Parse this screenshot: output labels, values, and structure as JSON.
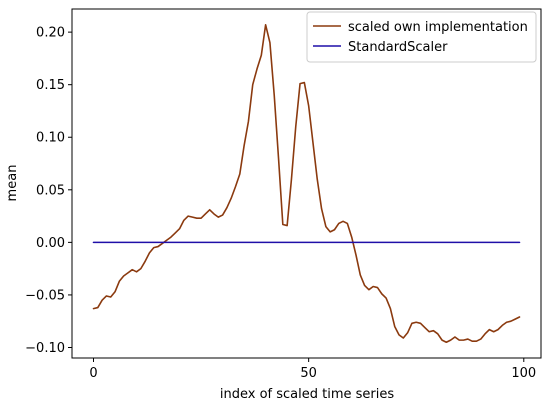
{
  "chart_data": {
    "type": "line",
    "title": "",
    "xlabel": "index of scaled time series",
    "ylabel": "mean",
    "xlim": [
      -5,
      104
    ],
    "ylim": [
      -0.11,
      0.222
    ],
    "xticks": [
      0,
      50,
      100
    ],
    "xtick_labels": [
      "0",
      "50",
      "100"
    ],
    "yticks": [
      -0.1,
      -0.05,
      0.0,
      0.05,
      0.1,
      0.15,
      0.2
    ],
    "ytick_labels": [
      "−0.10",
      "−0.05",
      "0.00",
      "0.05",
      "0.10",
      "0.15",
      "0.20"
    ],
    "grid": false,
    "legend_position": "top-right",
    "series": [
      {
        "name": "scaled own implementation",
        "color": "#8b3a0f",
        "x": [
          0,
          1,
          2,
          3,
          4,
          5,
          6,
          7,
          8,
          9,
          10,
          11,
          12,
          13,
          14,
          15,
          16,
          17,
          18,
          19,
          20,
          21,
          22,
          23,
          24,
          25,
          26,
          27,
          28,
          29,
          30,
          31,
          32,
          33,
          34,
          35,
          36,
          37,
          38,
          39,
          40,
          41,
          42,
          43,
          44,
          45,
          46,
          47,
          48,
          49,
          50,
          51,
          52,
          53,
          54,
          55,
          56,
          57,
          58,
          59,
          60,
          61,
          62,
          63,
          64,
          65,
          66,
          67,
          68,
          69,
          70,
          71,
          72,
          73,
          74,
          75,
          76,
          77,
          78,
          79,
          80,
          81,
          82,
          83,
          84,
          85,
          86,
          87,
          88,
          89,
          90,
          91,
          92,
          93,
          94,
          95,
          96,
          97,
          98,
          99
        ],
        "y": [
          -0.063,
          -0.062,
          -0.055,
          -0.051,
          -0.052,
          -0.047,
          -0.037,
          -0.032,
          -0.029,
          -0.026,
          -0.028,
          -0.025,
          -0.018,
          -0.01,
          -0.005,
          -0.004,
          -0.001,
          0.002,
          0.005,
          0.009,
          0.013,
          0.021,
          0.025,
          0.024,
          0.023,
          0.023,
          0.027,
          0.031,
          0.027,
          0.024,
          0.026,
          0.033,
          0.042,
          0.053,
          0.065,
          0.092,
          0.115,
          0.15,
          0.165,
          0.178,
          0.207,
          0.19,
          0.14,
          0.08,
          0.017,
          0.016,
          0.06,
          0.11,
          0.151,
          0.152,
          0.13,
          0.095,
          0.06,
          0.032,
          0.015,
          0.01,
          0.012,
          0.018,
          0.02,
          0.018,
          0.005,
          -0.012,
          -0.031,
          -0.041,
          -0.045,
          -0.042,
          -0.043,
          -0.049,
          -0.053,
          -0.063,
          -0.08,
          -0.088,
          -0.091,
          -0.086,
          -0.077,
          -0.076,
          -0.077,
          -0.081,
          -0.085,
          -0.084,
          -0.087,
          -0.093,
          -0.095,
          -0.093,
          -0.09,
          -0.093,
          -0.093,
          -0.092,
          -0.094,
          -0.094,
          -0.092,
          -0.087,
          -0.083,
          -0.085,
          -0.083,
          -0.079,
          -0.076,
          -0.075,
          -0.073,
          -0.071
        ]
      },
      {
        "name": "StandardScaler",
        "color": "#1f0fa8",
        "x": [
          0,
          99
        ],
        "y": [
          0.0,
          0.0
        ]
      }
    ]
  }
}
